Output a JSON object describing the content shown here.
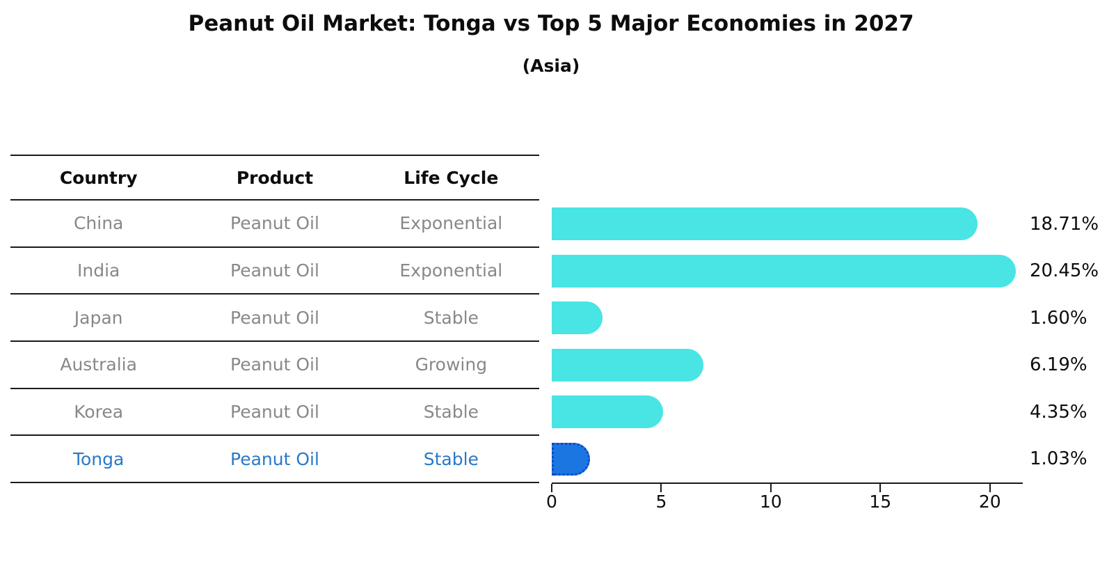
{
  "title": "Peanut Oil Market: Tonga vs Top 5 Major Economies in 2027",
  "subtitle": "(Asia)",
  "table": {
    "headers": [
      "Country",
      "Product",
      "Life Cycle"
    ],
    "rows": [
      {
        "country": "China",
        "product": "Peanut Oil",
        "life_cycle": "Exponential",
        "highlight": false
      },
      {
        "country": "India",
        "product": "Peanut Oil",
        "life_cycle": "Exponential",
        "highlight": false
      },
      {
        "country": "Japan",
        "product": "Peanut Oil",
        "life_cycle": "Stable",
        "highlight": false
      },
      {
        "country": "Australia",
        "product": "Peanut Oil",
        "life_cycle": "Growing",
        "highlight": false
      },
      {
        "country": "Korea",
        "product": "Peanut Oil",
        "life_cycle": "Stable",
        "highlight": true
      }
    ],
    "highlight_row": {
      "country": "Tonga",
      "product": "Peanut Oil",
      "life_cycle": "Stable"
    }
  },
  "chart_data": {
    "type": "bar",
    "orientation": "horizontal",
    "title": "Peanut Oil Market: Tonga vs Top 5 Major Economies in 2027 (Asia)",
    "categories": [
      "China",
      "India",
      "Japan",
      "Australia",
      "Korea",
      "Tonga"
    ],
    "values": [
      18.71,
      20.45,
      1.6,
      6.19,
      4.35,
      1.03
    ],
    "value_labels": [
      "18.71%",
      "20.45%",
      "1.60%",
      "6.19%",
      "4.35%",
      "1.03%"
    ],
    "x_ticks": [
      0,
      5,
      10,
      15,
      20
    ],
    "xlim": [
      0,
      21.5
    ],
    "highlight_index": 5,
    "grid": false,
    "legend": "none",
    "bar_color": "#48e5e4",
    "highlight_color": "#1c76e2",
    "highlight_border_color": "#1048c0",
    "row_text_color": "#888888",
    "highlight_text_color": "#2979c8"
  }
}
